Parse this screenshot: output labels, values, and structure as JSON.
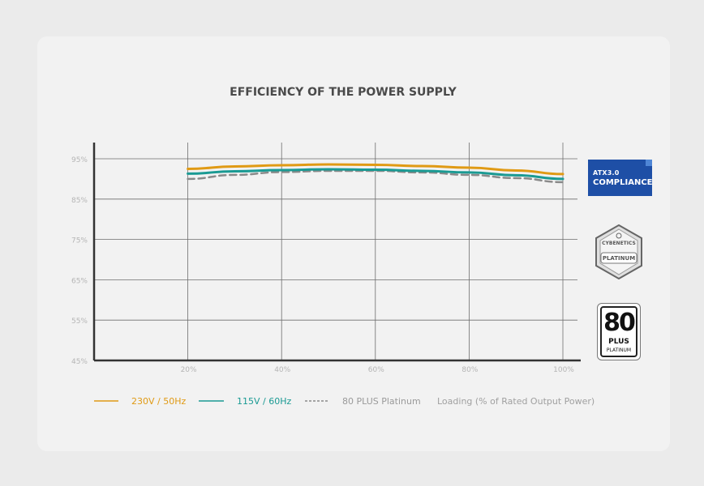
{
  "chart_data": {
    "type": "line",
    "title": "EFFICIENCY OF THE POWER SUPPLY",
    "xlabel": "Loading (% of Rated Output Power)",
    "ylabel": "",
    "x_ticks": [
      "20%",
      "40%",
      "60%",
      "80%",
      "100%"
    ],
    "y_ticks": [
      "95%",
      "85%",
      "75%",
      "65%",
      "55%",
      "45%"
    ],
    "ylim": [
      45,
      95
    ],
    "xlim": [
      0,
      100
    ],
    "grid": true,
    "legend_position": "bottom",
    "x": [
      20,
      30,
      40,
      50,
      60,
      70,
      80,
      90,
      100
    ],
    "series": [
      {
        "name": "230V / 50Hz",
        "values": [
          92.5,
          93.1,
          93.4,
          93.6,
          93.5,
          93.2,
          92.8,
          92.1,
          91.2
        ],
        "color": "#e09a14",
        "style": "solid"
      },
      {
        "name": "115V / 60Hz",
        "values": [
          91.3,
          91.9,
          92.2,
          92.4,
          92.3,
          92.0,
          91.6,
          90.9,
          90.0
        ],
        "color": "#1a9a93",
        "style": "solid"
      },
      {
        "name": "80 PLUS Platinum",
        "values": [
          90.0,
          91.0,
          91.7,
          92.0,
          92.0,
          91.6,
          91.0,
          90.2,
          89.2
        ],
        "color": "#8a8a8a",
        "style": "dashed"
      }
    ]
  },
  "badges": {
    "atx": {
      "line1": "ATX3.0",
      "line2": "COMPLIANCE"
    },
    "cybenetics": {
      "line1": "CYBENETICS",
      "line2": "PLATINUM"
    },
    "plus80": {
      "big": "80",
      "mid": "PLUS",
      "small": "PLATINUM"
    }
  }
}
